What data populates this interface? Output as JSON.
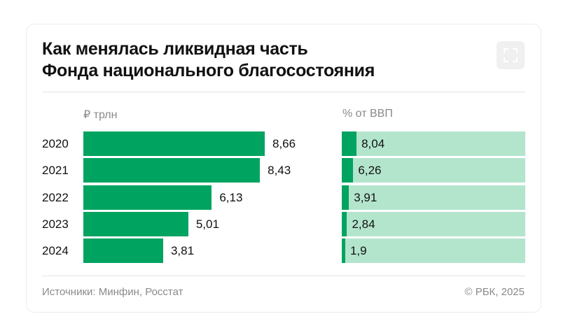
{
  "title": {
    "line1": "Как менялась ликвидная часть",
    "line2": "Фонда национального благосостояния"
  },
  "icons": {
    "expand": "expand-icon"
  },
  "colors": {
    "bar": "#00a460",
    "bar_light": "#b3e5cd"
  },
  "chart_data": [
    {
      "type": "bar",
      "orientation": "horizontal",
      "unit": "₽ трлн",
      "categories": [
        "2020",
        "2021",
        "2022",
        "2023",
        "2024"
      ],
      "values": [
        8.66,
        8.43,
        6.13,
        5.01,
        3.81
      ],
      "value_labels": [
        "8,66",
        "8,43",
        "6,13",
        "5,01",
        "3,81"
      ],
      "xlim": [
        0,
        8.66
      ]
    },
    {
      "type": "bar",
      "orientation": "horizontal",
      "unit": "% от ВВП",
      "categories": [
        "2020",
        "2021",
        "2022",
        "2023",
        "2024"
      ],
      "values": [
        8.04,
        6.26,
        3.91,
        2.84,
        1.9
      ],
      "value_labels": [
        "8,04",
        "6,26",
        "3,91",
        "2,84",
        "1,9"
      ],
      "xlim": [
        0,
        100
      ]
    }
  ],
  "footer": {
    "source": "Источники: Минфин, Росстат",
    "copyright": "© РБК, 2025"
  }
}
